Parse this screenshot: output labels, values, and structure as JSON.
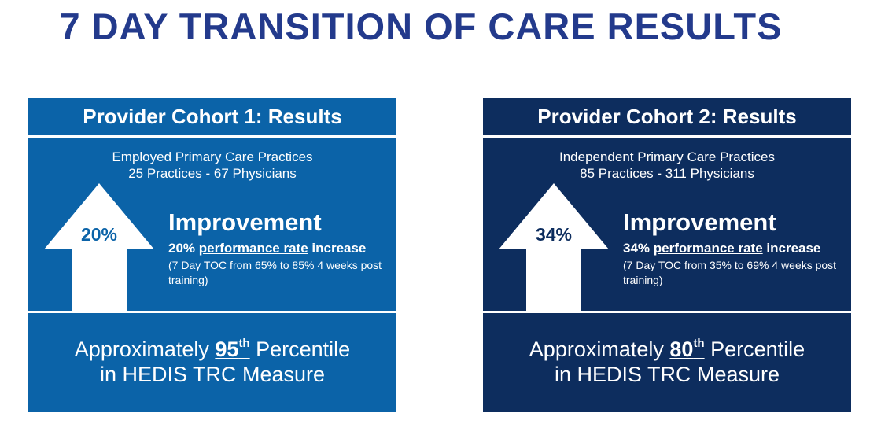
{
  "title": "7 DAY TRANSITION OF CARE RESULTS",
  "colors": {
    "title": "#233a8c",
    "cohort1": "#0b63a8",
    "cohort2": "#0d2d5e",
    "text": "#ffffff"
  },
  "cohorts": [
    {
      "header": "Provider Cohort 1: Results",
      "practice_type": "Employed Primary Care Practices",
      "practice_count": "25 Practices - 67 Physicians",
      "arrow_value": "20%",
      "improvement_label": "Improvement",
      "rate_value": "20%",
      "rate_label": "performance rate",
      "rate_suffix": "increase",
      "detail": "(7 Day TOC from 65% to 85% 4 weeks post training)",
      "percentile_prefix": "Approximately",
      "percentile_number": "95",
      "percentile_suffix": "th",
      "percentile_word": "Percentile",
      "measure": "in HEDIS TRC Measure"
    },
    {
      "header": "Provider Cohort 2: Results",
      "practice_type": "Independent Primary Care Practices",
      "practice_count": "85 Practices - 311 Physicians",
      "arrow_value": "34%",
      "improvement_label": "Improvement",
      "rate_value": "34%",
      "rate_label": "performance rate",
      "rate_suffix": "increase",
      "detail": "(7 Day TOC from 35% to 69% 4 weeks post training)",
      "percentile_prefix": "Approximately",
      "percentile_number": "80",
      "percentile_suffix": "th",
      "percentile_word": "Percentile",
      "measure": "in HEDIS TRC Measure"
    }
  ]
}
